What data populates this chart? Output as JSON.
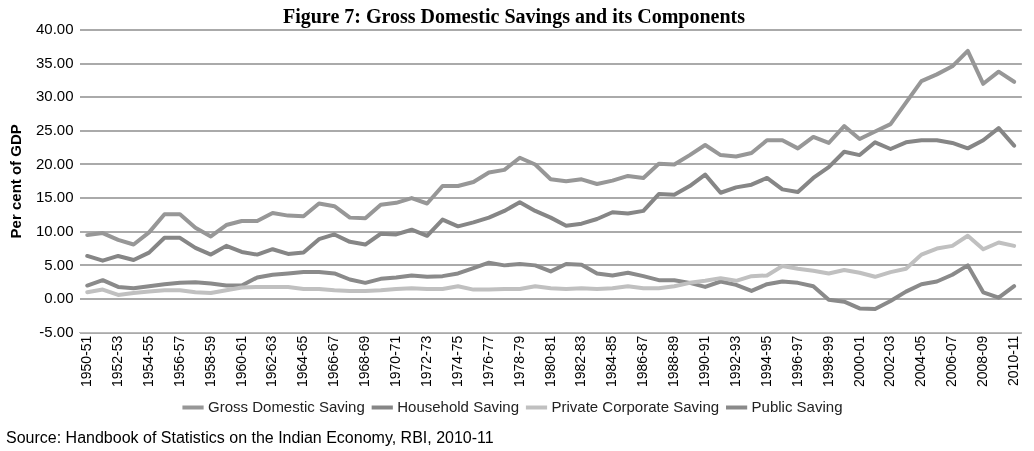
{
  "chart_data": {
    "type": "line",
    "title": "Figure 7: Gross Domestic Savings and its Components",
    "ylabel": "Per cent of GDP",
    "categories": [
      "1950-51",
      null,
      "1952-53",
      null,
      "1954-55",
      null,
      "1956-57",
      null,
      "1958-59",
      null,
      "1960-61",
      null,
      "1962-63",
      null,
      "1964-65",
      null,
      "1966-67",
      null,
      "1968-69",
      null,
      "1970-71",
      null,
      "1972-73",
      null,
      "1974-75",
      null,
      "1976-77",
      null,
      "1978-79",
      null,
      "1980-81",
      null,
      "1982-83",
      null,
      "1984-85",
      null,
      "1986-87",
      null,
      "1988-89",
      null,
      "1990-91",
      null,
      "1992-93",
      null,
      "1994-95",
      null,
      "1996-97",
      null,
      "1998-99",
      null,
      "2000-01",
      null,
      "2002-03",
      null,
      "2004-05",
      null,
      "2006-07",
      null,
      "2008-09",
      null,
      "2010-11"
    ],
    "series": [
      {
        "name": "Gross Domestic Saving",
        "color": "#979797",
        "values": [
          9.5,
          9.8,
          8.8,
          8.1,
          9.9,
          12.6,
          12.6,
          10.6,
          9.3,
          11.0,
          11.6,
          11.6,
          12.8,
          12.4,
          12.3,
          14.2,
          13.8,
          12.1,
          12.0,
          14.0,
          14.3,
          15.0,
          14.2,
          16.8,
          16.8,
          17.4,
          18.8,
          19.2,
          21.0,
          20.0,
          17.8,
          17.5,
          17.8,
          17.1,
          17.6,
          18.3,
          18.0,
          20.1,
          20.0,
          21.4,
          22.9,
          21.4,
          21.2,
          21.7,
          23.6,
          23.6,
          22.4,
          24.1,
          23.2,
          25.7,
          23.8,
          24.9,
          26.0,
          29.2,
          32.4,
          33.4,
          34.6,
          36.9,
          32.0,
          33.8,
          32.3
        ]
      },
      {
        "name": "Household Saving",
        "color": "#868686",
        "values": [
          6.4,
          5.7,
          6.4,
          5.8,
          6.9,
          9.1,
          9.1,
          7.6,
          6.6,
          7.9,
          7.0,
          6.6,
          7.4,
          6.7,
          6.9,
          8.9,
          9.6,
          8.5,
          8.1,
          9.7,
          9.6,
          10.3,
          9.4,
          11.8,
          10.8,
          11.4,
          12.1,
          13.1,
          14.4,
          13.1,
          12.1,
          10.9,
          11.2,
          11.9,
          12.9,
          12.7,
          13.1,
          15.6,
          15.5,
          16.8,
          18.5,
          15.8,
          16.6,
          17.0,
          18.0,
          16.3,
          15.9,
          18.0,
          19.6,
          21.9,
          21.4,
          23.3,
          22.3,
          23.3,
          23.6,
          23.6,
          23.2,
          22.4,
          23.6,
          25.4,
          22.8
        ]
      },
      {
        "name": "Private Corporate Saving",
        "color": "#c0c0c0",
        "values": [
          1.0,
          1.4,
          0.6,
          0.9,
          1.1,
          1.3,
          1.3,
          1.0,
          0.9,
          1.3,
          1.7,
          1.8,
          1.8,
          1.8,
          1.5,
          1.5,
          1.3,
          1.2,
          1.2,
          1.3,
          1.5,
          1.6,
          1.5,
          1.5,
          1.9,
          1.4,
          1.4,
          1.5,
          1.5,
          1.9,
          1.6,
          1.5,
          1.6,
          1.5,
          1.6,
          1.9,
          1.6,
          1.6,
          1.9,
          2.4,
          2.7,
          3.1,
          2.7,
          3.4,
          3.5,
          4.9,
          4.5,
          4.2,
          3.8,
          4.3,
          3.9,
          3.3,
          4.0,
          4.5,
          6.6,
          7.5,
          7.9,
          9.4,
          7.4,
          8.4,
          7.9
        ]
      },
      {
        "name": "Public Saving",
        "color": "#8a8a8a",
        "values": [
          2.0,
          2.8,
          1.8,
          1.6,
          1.9,
          2.2,
          2.4,
          2.5,
          2.3,
          2.0,
          2.0,
          3.2,
          3.6,
          3.8,
          4.0,
          4.0,
          3.8,
          2.9,
          2.4,
          3.0,
          3.2,
          3.5,
          3.3,
          3.4,
          3.8,
          4.6,
          5.4,
          5.0,
          5.2,
          5.0,
          4.1,
          5.2,
          5.1,
          3.8,
          3.5,
          3.9,
          3.4,
          2.8,
          2.8,
          2.4,
          1.8,
          2.6,
          2.1,
          1.2,
          2.2,
          2.6,
          2.4,
          1.9,
          -0.1,
          -0.4,
          -1.4,
          -1.5,
          -0.3,
          1.1,
          2.2,
          2.6,
          3.6,
          5.0,
          1.0,
          0.2,
          1.9
        ]
      }
    ],
    "ylim": [
      -5,
      40
    ],
    "yticks": [
      {
        "value": -5,
        "label": "-5.00"
      },
      {
        "value": 0,
        "label": "0.00"
      },
      {
        "value": 5,
        "label": "5.00"
      },
      {
        "value": 10,
        "label": "10.00"
      },
      {
        "value": 15,
        "label": "15.00"
      },
      {
        "value": 20,
        "label": "20.00"
      },
      {
        "value": 25,
        "label": "25.00"
      },
      {
        "value": 30,
        "label": "30.00"
      },
      {
        "value": 35,
        "label": "35.00"
      },
      {
        "value": 40,
        "label": "40.00"
      }
    ],
    "grid": "y",
    "legend": "bottom",
    "marker": "none",
    "line_style": "solid",
    "annotations": [
      "Source: Handbook of Statistics on the Indian Economy, RBI, 2010-11"
    ]
  }
}
